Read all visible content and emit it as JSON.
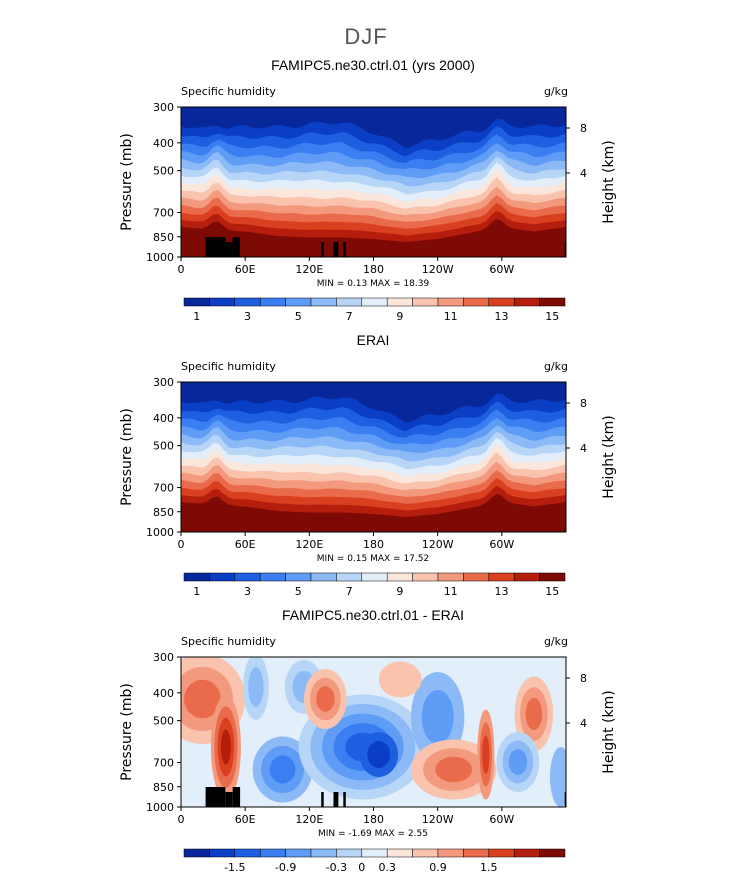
{
  "figure": {
    "season_title": "DJF"
  },
  "chart_data": [
    {
      "type": "heatmap",
      "title": "FAMIPC5.ne30.ctrl.01 (yrs 2000)",
      "left_string": "Specific humidity",
      "right_string": "g/kg",
      "xlabel": "",
      "ylabel": "Pressure (mb)",
      "y2label": "Height (km)",
      "x_ticks": [
        "0",
        "60E",
        "120E",
        "180",
        "120W",
        "60W"
      ],
      "y_ticks": [
        "300",
        "400",
        "500",
        "700",
        "850",
        "1000"
      ],
      "y2_ticks": [
        "8",
        "4"
      ],
      "stats": {
        "min_label": "MIN =",
        "min": "0.13",
        "max_label": "MAX =",
        "max": "18.39"
      },
      "colorbar": {
        "labels": [
          "1",
          "3",
          "5",
          "7",
          "9",
          "11",
          "13",
          "15"
        ],
        "colors": [
          "#08279a",
          "#0a3ec4",
          "#1d5fe0",
          "#3a7ef2",
          "#5f9cf6",
          "#8bbaf7",
          "#b7d6f7",
          "#e2eef9",
          "#fbe6dc",
          "#f9c3ad",
          "#f39a7e",
          "#ea6b4b",
          "#d9401f",
          "#b51d0c",
          "#7e0a05"
        ]
      },
      "terrain": [
        [
          10,
          18,
          11
        ],
        [
          18,
          21,
          6
        ],
        [
          21,
          24,
          11
        ],
        [
          57,
          58,
          6
        ],
        [
          62,
          64,
          6
        ],
        [
          66,
          67,
          6
        ],
        [
          156,
          167,
          6
        ]
      ]
    },
    {
      "type": "heatmap",
      "title": "ERAI",
      "left_string": "Specific humidity",
      "right_string": "g/kg",
      "xlabel": "",
      "ylabel": "Pressure (mb)",
      "y2label": "Height (km)",
      "x_ticks": [
        "0",
        "60E",
        "120E",
        "180",
        "120W",
        "60W"
      ],
      "y_ticks": [
        "300",
        "400",
        "500",
        "700",
        "850",
        "1000"
      ],
      "y2_ticks": [
        "8",
        "4"
      ],
      "stats": {
        "min_label": "MIN =",
        "min": "0.15",
        "max_label": "MAX =",
        "max": "17.52"
      },
      "colorbar": {
        "labels": [
          "1",
          "3",
          "5",
          "7",
          "9",
          "11",
          "13",
          "15"
        ],
        "colors": [
          "#08279a",
          "#0a3ec4",
          "#1d5fe0",
          "#3a7ef2",
          "#5f9cf6",
          "#8bbaf7",
          "#b7d6f7",
          "#e2eef9",
          "#fbe6dc",
          "#f9c3ad",
          "#f39a7e",
          "#ea6b4b",
          "#d9401f",
          "#b51d0c",
          "#7e0a05"
        ]
      },
      "terrain": []
    },
    {
      "type": "heatmap",
      "title": "FAMIPC5.ne30.ctrl.01 - ERAI",
      "left_string": "Specific humidity",
      "right_string": "g/kg",
      "xlabel": "",
      "ylabel": "Pressure (mb)",
      "y2label": "Height (km)",
      "x_ticks": [
        "0",
        "60E",
        "120E",
        "180",
        "120W",
        "60W"
      ],
      "y_ticks": [
        "300",
        "400",
        "500",
        "700",
        "850",
        "1000"
      ],
      "y2_ticks": [
        "8",
        "4"
      ],
      "stats": {
        "min_label": "MIN =",
        "min": "-1.69",
        "max_label": "MAX =",
        "max": "2.55"
      },
      "colorbar": {
        "labels": [
          "-1.5",
          "-0.9",
          "-0.3",
          "0",
          "0.3",
          "0.9",
          "1.5"
        ],
        "colors": [
          "#08279a",
          "#0a3ec4",
          "#1d5fe0",
          "#3a7ef2",
          "#5f9cf6",
          "#8bbaf7",
          "#b7d6f7",
          "#e2eef9",
          "#fbe6dc",
          "#f9c3ad",
          "#f39a7e",
          "#ea6b4b",
          "#d9401f",
          "#b51d0c",
          "#7e0a05"
        ]
      },
      "terrain": [
        [
          10,
          18,
          11
        ],
        [
          18,
          21,
          6
        ],
        [
          21,
          24,
          11
        ],
        [
          57,
          58,
          6
        ],
        [
          62,
          64,
          6
        ],
        [
          66,
          67,
          6
        ],
        [
          156,
          167,
          6
        ]
      ]
    }
  ]
}
